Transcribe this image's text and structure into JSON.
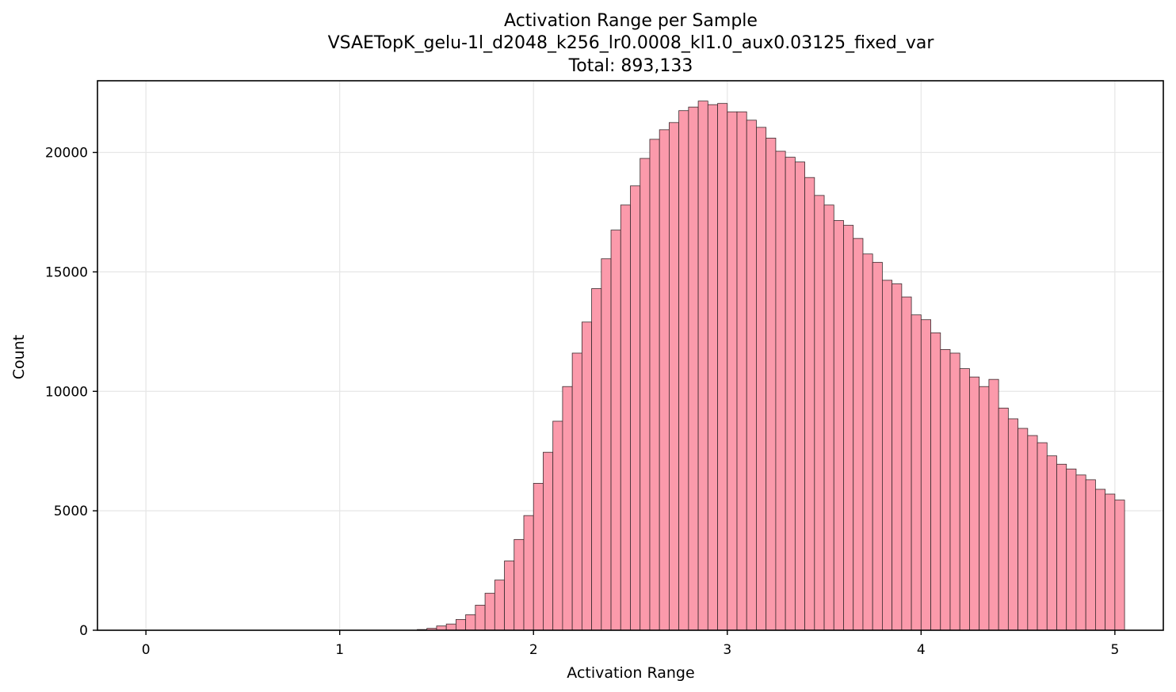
{
  "chart_data": {
    "type": "bar",
    "title_lines": [
      "Activation Range per Sample",
      "VSAETopK_gelu-1l_d2048_k256_lr0.0008_kl1.0_aux0.03125_fixed_var",
      "Total: 893,133"
    ],
    "xlabel": "Activation Range",
    "ylabel": "Count",
    "xlim": [
      -0.25,
      5.25
    ],
    "ylim": [
      0,
      23000
    ],
    "xticks": [
      0,
      1,
      2,
      3,
      4,
      5
    ],
    "yticks": [
      0,
      5000,
      10000,
      15000,
      20000
    ],
    "grid": true,
    "bin_start": 0,
    "bin_width": 0.05,
    "values": [
      0,
      0,
      0,
      0,
      0,
      0,
      0,
      0,
      0,
      0,
      0,
      0,
      0,
      0,
      0,
      0,
      0,
      0,
      0,
      0,
      0,
      0,
      0,
      0,
      0,
      0,
      0,
      0,
      30,
      80,
      180,
      260,
      450,
      650,
      1050,
      1550,
      2100,
      2900,
      3800,
      4800,
      6150,
      7450,
      8750,
      10200,
      11600,
      12900,
      14300,
      15550,
      16750,
      17800,
      18600,
      19750,
      20550,
      20950,
      21250,
      21750,
      21900,
      22150,
      22000,
      22050,
      21700,
      21700,
      21350,
      21050,
      20600,
      20050,
      19800,
      19600,
      18950,
      18200,
      17800,
      17150,
      16950,
      16400,
      15750,
      15400,
      14650,
      14500,
      13950,
      13200,
      13000,
      12450,
      11750,
      11600,
      10950,
      10600,
      10200,
      10500,
      9300,
      8850,
      8450,
      8150,
      7850,
      7300,
      6950,
      6750,
      6500,
      6300,
      5900,
      5700,
      5450
    ]
  }
}
